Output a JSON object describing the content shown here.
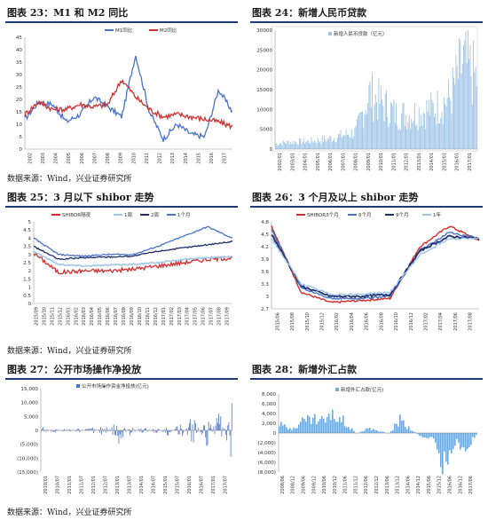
{
  "source_label": "数据来源：Wind，兴业证券研究所",
  "charts": [
    {
      "id": "c23",
      "title": "图表 23：M1 和 M2 同比",
      "type": "line",
      "legend": [
        "M1同比",
        "M2同比"
      ],
      "y_ticks": [
        "0",
        "5",
        "10",
        "15",
        "20",
        "25",
        "30",
        "35",
        "40",
        "45"
      ],
      "x_ticks": [
        "2002",
        "2003",
        "2004",
        "2005",
        "2006",
        "2007",
        "2008",
        "2009",
        "2010",
        "2011",
        "2012",
        "2013",
        "2014",
        "2015",
        "2016",
        "2017"
      ],
      "colors": [
        "#4a73c9",
        "#cf2f2f"
      ],
      "show_source": true
    },
    {
      "id": "c24",
      "title": "图表 24：新增人民币贷款",
      "type": "bar",
      "legend": [
        "新增人民币贷款（亿元）"
      ],
      "y_ticks": [
        "0",
        "5000",
        "10000",
        "15000",
        "20000",
        "25000",
        "30000"
      ],
      "x_ticks": [
        "2002/01",
        "2003/01",
        "2004/01",
        "2005/01",
        "2006/01",
        "2007/01",
        "2008/01",
        "2009/01",
        "2010/01",
        "2011/01",
        "2012/01",
        "2013/01",
        "2014/01",
        "2015/01",
        "2016/01",
        "2017/01"
      ],
      "colors": [
        "#9fc5e8"
      ],
      "show_source": false
    },
    {
      "id": "c25",
      "title": "图表 25：3 月以下 shibor 走势",
      "type": "line",
      "legend": [
        "SHIBOR隔夜",
        "1周",
        "2周",
        "1个月"
      ],
      "y_ticks": [
        "0",
        "0.5",
        "1",
        "1.5",
        "2",
        "2.5",
        "3",
        "3.5",
        "4",
        "4.5",
        "5"
      ],
      "x_ticks": [
        "2015/09",
        "2015/10",
        "2015/11",
        "2015/12",
        "2016/01",
        "2016/02",
        "2016/03",
        "2016/04",
        "2016/05",
        "2016/06",
        "2016/07",
        "2016/08",
        "2016/09",
        "2016/10",
        "2016/11",
        "2016/12",
        "2017/01",
        "2017/02",
        "2017/03",
        "2017/04",
        "2017/05",
        "2017/06",
        "2017/07",
        "2017/08",
        "2017/09"
      ],
      "colors": [
        "#d62b2b",
        "#9fc5e8",
        "#1c2e6e",
        "#4a73c9"
      ],
      "show_source": true
    },
    {
      "id": "c26",
      "title": "图表 26：3 个月及以上 shibor 走势",
      "type": "line",
      "legend": [
        "SHIBOR3个月",
        "6个月",
        "9个月",
        "1年"
      ],
      "y_ticks": [
        "2.7",
        "3",
        "3.3",
        "3.6",
        "3.9",
        "4.2",
        "4.5",
        "4.8"
      ],
      "x_ticks": [
        "2015/06",
        "2015/08",
        "2015/10",
        "2015/12",
        "2016/02",
        "2016/04",
        "2016/06",
        "2016/08",
        "2016/10",
        "2016/12",
        "2017/02",
        "2017/04",
        "2017/06",
        "2017/08"
      ],
      "colors": [
        "#d62b2b",
        "#4a73c9",
        "#1c2e6e",
        "#9fc5e8"
      ],
      "show_source": false
    },
    {
      "id": "c27",
      "title": "图表 27：公开市场操作净投放",
      "type": "bar",
      "legend": [
        "公开市场操作资金净投放(亿元)"
      ],
      "y_ticks": [
        "(15,000)",
        "(10,000)",
        "(5,000)",
        "0",
        "5,000",
        "10,000",
        "15,000"
      ],
      "x_ticks": [
        "2010/01",
        "2010/07",
        "2011/01",
        "2011/07",
        "2012/01",
        "2012/07",
        "2013/01",
        "2013/07",
        "2014/01",
        "2014/07",
        "2015/01",
        "2015/07",
        "2016/01",
        "2016/07",
        "2017/01",
        "2017/07"
      ],
      "colors": [
        "#4a73c9"
      ],
      "show_source": true
    },
    {
      "id": "c28",
      "title": "图表 28：新增外汇占款",
      "type": "bar",
      "legend": [
        "新增外汇占款(亿元)"
      ],
      "y_ticks": [
        "(8,000)",
        "(6,000)",
        "(4,000)",
        "(2,000)",
        "0",
        "2,000",
        "4,000",
        "6,000",
        "8,000"
      ],
      "x_ticks": [
        "2008/06",
        "2008/12",
        "2009/06",
        "2009/12",
        "2010/06",
        "2010/12",
        "2011/06",
        "2011/12",
        "2012/06",
        "2012/12",
        "2013/06",
        "2013/12",
        "2014/06",
        "2014/12",
        "2015/06",
        "2015/12",
        "2016/06",
        "2016/12",
        "2017/06"
      ],
      "colors": [
        "#6fa8dc"
      ],
      "show_source": false
    }
  ],
  "chart_data": [
    {
      "type": "line",
      "title": "图表 23：M1 和 M2 同比",
      "x": [
        "2002",
        "2003",
        "2004",
        "2005",
        "2006",
        "2007",
        "2008",
        "2009",
        "2010",
        "2011",
        "2012",
        "2013",
        "2014",
        "2015",
        "2016",
        "2017"
      ],
      "ylim": [
        0,
        45
      ],
      "series": [
        {
          "name": "M1同比",
          "values": [
            12,
            19,
            18,
            11,
            14,
            21,
            17,
            13,
            38,
            15,
            4,
            10,
            6,
            5,
            24,
            15
          ]
        },
        {
          "name": "M2同比",
          "values": [
            14,
            19,
            16,
            16,
            18,
            17,
            18,
            28,
            21,
            16,
            13,
            14,
            13,
            12,
            11,
            9
          ]
        }
      ]
    },
    {
      "type": "bar",
      "title": "图表 24：新增人民币贷款",
      "x": [
        "2002/01",
        "2003/01",
        "2004/01",
        "2005/01",
        "2006/01",
        "2007/01",
        "2008/01",
        "2009/01",
        "2010/01",
        "2011/01",
        "2012/01",
        "2013/01",
        "2014/01",
        "2015/01",
        "2016/01",
        "2017/01"
      ],
      "ylim": [
        0,
        30000
      ],
      "series": [
        {
          "name": "新增人民币贷款（亿元）",
          "values": [
            1600,
            2000,
            2200,
            2400,
            3000,
            4000,
            5000,
            16000,
            13000,
            10000,
            10000,
            11000,
            12000,
            14700,
            25100,
            20300
          ]
        }
      ]
    },
    {
      "type": "line",
      "title": "图表 25：3 月以下 shibor 走势",
      "x": [
        "2015/09",
        "2015/12",
        "2016/03",
        "2016/06",
        "2016/09",
        "2016/12",
        "2017/03",
        "2017/06",
        "2017/09"
      ],
      "ylim": [
        0,
        5
      ],
      "series": [
        {
          "name": "SHIBOR隔夜",
          "values": [
            3.1,
            1.9,
            2.0,
            2.0,
            2.1,
            2.3,
            2.5,
            2.7,
            2.8
          ]
        },
        {
          "name": "1周",
          "values": [
            3.2,
            2.4,
            2.3,
            2.35,
            2.4,
            2.5,
            2.7,
            2.8,
            2.9
          ]
        },
        {
          "name": "2周",
          "values": [
            3.5,
            2.7,
            2.8,
            2.85,
            2.9,
            3.2,
            3.4,
            3.6,
            3.8
          ]
        },
        {
          "name": "1个月",
          "values": [
            4.0,
            3.0,
            2.9,
            3.0,
            3.0,
            3.5,
            4.1,
            4.7,
            4.0
          ]
        }
      ]
    },
    {
      "type": "line",
      "title": "图表 26：3 个月及以上 shibor 走势",
      "x": [
        "2015/06",
        "2015/10",
        "2016/02",
        "2016/06",
        "2016/10",
        "2017/02",
        "2017/06",
        "2017/08"
      ],
      "ylim": [
        2.7,
        4.8
      ],
      "series": [
        {
          "name": "SHIBOR3个月",
          "values": [
            4.7,
            3.1,
            2.85,
            2.9,
            2.95,
            4.2,
            4.7,
            4.35
          ]
        },
        {
          "name": "6个月",
          "values": [
            4.6,
            3.2,
            2.95,
            2.95,
            3.0,
            4.1,
            4.55,
            4.4
          ]
        },
        {
          "name": "9个月",
          "values": [
            4.5,
            3.25,
            3.0,
            3.0,
            3.05,
            4.1,
            4.45,
            4.4
          ]
        },
        {
          "name": "1年",
          "values": [
            4.4,
            3.3,
            3.05,
            3.05,
            3.1,
            4.0,
            4.4,
            4.4
          ]
        }
      ]
    },
    {
      "type": "bar",
      "title": "图表 27：公开市场操作净投放",
      "x": [
        "2010/01",
        "2010/07",
        "2011/01",
        "2011/07",
        "2012/01",
        "2012/07",
        "2013/01",
        "2013/07",
        "2014/01",
        "2014/07",
        "2015/01",
        "2015/07",
        "2016/01",
        "2016/07",
        "2017/01",
        "2017/07"
      ],
      "ylim": [
        -15000,
        15000
      ],
      "series": [
        {
          "name": "公开市场操作资金净投放(亿元)",
          "values": [
            -1500,
            900,
            -800,
            700,
            -1600,
            2500,
            -5200,
            1800,
            -1500,
            1200,
            -1800,
            3000,
            -6000,
            7000,
            -8000,
            11500
          ]
        }
      ]
    },
    {
      "type": "bar",
      "title": "图表 28：新增外汇占款",
      "x": [
        "2008/06",
        "2008/12",
        "2009/06",
        "2009/12",
        "2010/06",
        "2010/12",
        "2011/06",
        "2011/12",
        "2012/06",
        "2012/12",
        "2013/06",
        "2013/12",
        "2014/06",
        "2014/12",
        "2015/06",
        "2015/12",
        "2016/06",
        "2016/12",
        "2017/06"
      ],
      "ylim": [
        -8000,
        8000
      ],
      "series": [
        {
          "name": "新增外汇占款(亿元)",
          "values": [
            1800,
            900,
            2500,
            3200,
            2800,
            3700,
            2700,
            -200,
            900,
            600,
            -200,
            2800,
            900,
            -800,
            -1100,
            -6500,
            -2000,
            -3500,
            -300
          ]
        }
      ]
    }
  ]
}
